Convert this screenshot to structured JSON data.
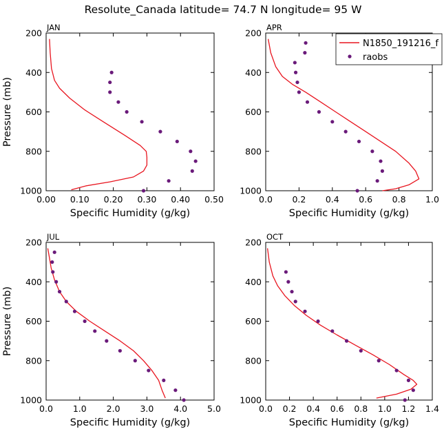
{
  "title": "Resolute_Canada  latitude= 74.7 N longitude= 95 W",
  "legend": {
    "model": "N1850_191216_f",
    "obs": "raobs"
  },
  "colors": {
    "model": "#e8141e",
    "obs": "#6a1a7a",
    "axis": "#000000"
  },
  "chart_data": [
    {
      "type": "line",
      "month": "JAN",
      "xlabel": "Specific Humidity (g/kg)",
      "ylabel": "Pressure (mb)",
      "xlim": [
        0,
        0.5
      ],
      "ylim": [
        200,
        1000
      ],
      "xticks": [
        0.0,
        0.1,
        0.2,
        0.3,
        0.4,
        0.5
      ],
      "xtick_labels": [
        "0.00",
        "0.10",
        "0.20",
        "0.30",
        "0.40",
        "0.50"
      ],
      "yticks": [
        200,
        400,
        600,
        800,
        1000
      ],
      "ytick_labels": [
        "200",
        "400",
        "600",
        "800",
        "1000"
      ],
      "series": [
        {
          "name": "N1850_191216_f",
          "kind": "line",
          "x": [
            0.01,
            0.012,
            0.016,
            0.025,
            0.04,
            0.07,
            0.115,
            0.17,
            0.235,
            0.28,
            0.298,
            0.3,
            0.3,
            0.29,
            0.26,
            0.19,
            0.12,
            0.075
          ],
          "y": [
            230,
            300,
            380,
            440,
            480,
            530,
            590,
            650,
            720,
            770,
            800,
            830,
            870,
            900,
            930,
            955,
            975,
            995
          ]
        },
        {
          "name": "raobs",
          "kind": "scatter",
          "x": [
            0.195,
            0.19,
            0.19,
            0.215,
            0.24,
            0.285,
            0.34,
            0.39,
            0.43,
            0.445,
            0.435,
            0.365,
            0.29
          ],
          "y": [
            400,
            450,
            500,
            550,
            600,
            650,
            700,
            750,
            800,
            850,
            900,
            950,
            1000
          ]
        }
      ]
    },
    {
      "type": "line",
      "month": "APR",
      "xlabel": "Specific Humidity (g/kg)",
      "ylabel": "",
      "xlim": [
        0,
        1.0
      ],
      "ylim": [
        200,
        1000
      ],
      "xticks": [
        0.0,
        0.2,
        0.4,
        0.6,
        0.8,
        1.0
      ],
      "xtick_labels": [
        "0.0",
        "0.2",
        "0.4",
        "0.6",
        "0.8",
        "1.0"
      ],
      "yticks": [
        200,
        400,
        600,
        800,
        1000
      ],
      "ytick_labels": [
        "200",
        "400",
        "600",
        "800",
        "1000"
      ],
      "series": [
        {
          "name": "N1850_191216_f",
          "kind": "line",
          "x": [
            0.015,
            0.03,
            0.06,
            0.1,
            0.16,
            0.24,
            0.33,
            0.42,
            0.51,
            0.6,
            0.69,
            0.78,
            0.86,
            0.9,
            0.92,
            0.86,
            0.78,
            0.7
          ],
          "y": [
            230,
            300,
            370,
            420,
            460,
            500,
            550,
            600,
            650,
            700,
            750,
            800,
            860,
            900,
            940,
            970,
            990,
            1000
          ]
        },
        {
          "name": "raobs",
          "kind": "scatter",
          "x": [
            0.24,
            0.235,
            0.175,
            0.18,
            0.19,
            0.2,
            0.25,
            0.32,
            0.4,
            0.48,
            0.56,
            0.64,
            0.69,
            0.7,
            0.67,
            0.55
          ],
          "y": [
            250,
            300,
            350,
            400,
            450,
            500,
            550,
            600,
            650,
            700,
            750,
            800,
            850,
            900,
            950,
            1000
          ]
        }
      ]
    },
    {
      "type": "line",
      "month": "JUL",
      "xlabel": "Specific Humidity (g/kg)",
      "ylabel": "Pressure (mb)",
      "xlim": [
        0,
        5.0
      ],
      "ylim": [
        200,
        1000
      ],
      "xticks": [
        0,
        1,
        2,
        3,
        4,
        5
      ],
      "xtick_labels": [
        "0.0",
        "1.0",
        "2.0",
        "3.0",
        "4.0",
        "5.0"
      ],
      "yticks": [
        200,
        400,
        600,
        800,
        1000
      ],
      "ytick_labels": [
        "200",
        "400",
        "600",
        "800",
        "1000"
      ],
      "series": [
        {
          "name": "N1850_191216_f",
          "kind": "line",
          "x": [
            0.05,
            0.1,
            0.15,
            0.25,
            0.4,
            0.6,
            0.9,
            1.3,
            1.75,
            2.2,
            2.6,
            2.9,
            3.15,
            3.35,
            3.45,
            3.55
          ],
          "y": [
            230,
            280,
            330,
            390,
            450,
            500,
            550,
            600,
            650,
            700,
            750,
            800,
            850,
            900,
            950,
            990
          ]
        },
        {
          "name": "raobs",
          "kind": "scatter",
          "x": [
            0.25,
            0.18,
            0.2,
            0.3,
            0.4,
            0.6,
            0.85,
            1.15,
            1.45,
            1.8,
            2.2,
            2.65,
            3.05,
            3.5,
            3.85,
            4.1
          ],
          "y": [
            250,
            300,
            350,
            400,
            450,
            500,
            550,
            600,
            650,
            700,
            750,
            800,
            850,
            900,
            950,
            1000
          ]
        }
      ]
    },
    {
      "type": "line",
      "month": "OCT",
      "xlabel": "Specific Humidity (g/kg)",
      "ylabel": "",
      "xlim": [
        0,
        1.4
      ],
      "ylim": [
        200,
        1000
      ],
      "xticks": [
        0,
        0.2,
        0.4,
        0.6,
        0.8,
        1.0,
        1.2,
        1.4
      ],
      "xtick_labels": [
        "0.0",
        "0.2",
        "0.4",
        "0.6",
        "0.8",
        "1.0",
        "1.2",
        "1.4"
      ],
      "yticks": [
        200,
        400,
        600,
        800,
        1000
      ],
      "ytick_labels": [
        "200",
        "400",
        "600",
        "800",
        "1000"
      ],
      "series": [
        {
          "name": "N1850_191216_f",
          "kind": "line",
          "x": [
            0.015,
            0.03,
            0.06,
            0.1,
            0.16,
            0.24,
            0.34,
            0.46,
            0.6,
            0.75,
            0.9,
            1.04,
            1.16,
            1.24,
            1.27,
            1.22,
            1.1,
            0.93
          ],
          "y": [
            230,
            300,
            370,
            420,
            470,
            520,
            570,
            620,
            670,
            720,
            770,
            820,
            870,
            900,
            920,
            945,
            970,
            990
          ]
        },
        {
          "name": "raobs",
          "kind": "scatter",
          "x": [
            0.17,
            0.19,
            0.22,
            0.25,
            0.33,
            0.44,
            0.56,
            0.68,
            0.8,
            0.95,
            1.1,
            1.2,
            1.24,
            1.17
          ],
          "y": [
            350,
            400,
            450,
            500,
            550,
            600,
            650,
            700,
            750,
            800,
            850,
            900,
            950,
            1000
          ]
        }
      ]
    }
  ]
}
